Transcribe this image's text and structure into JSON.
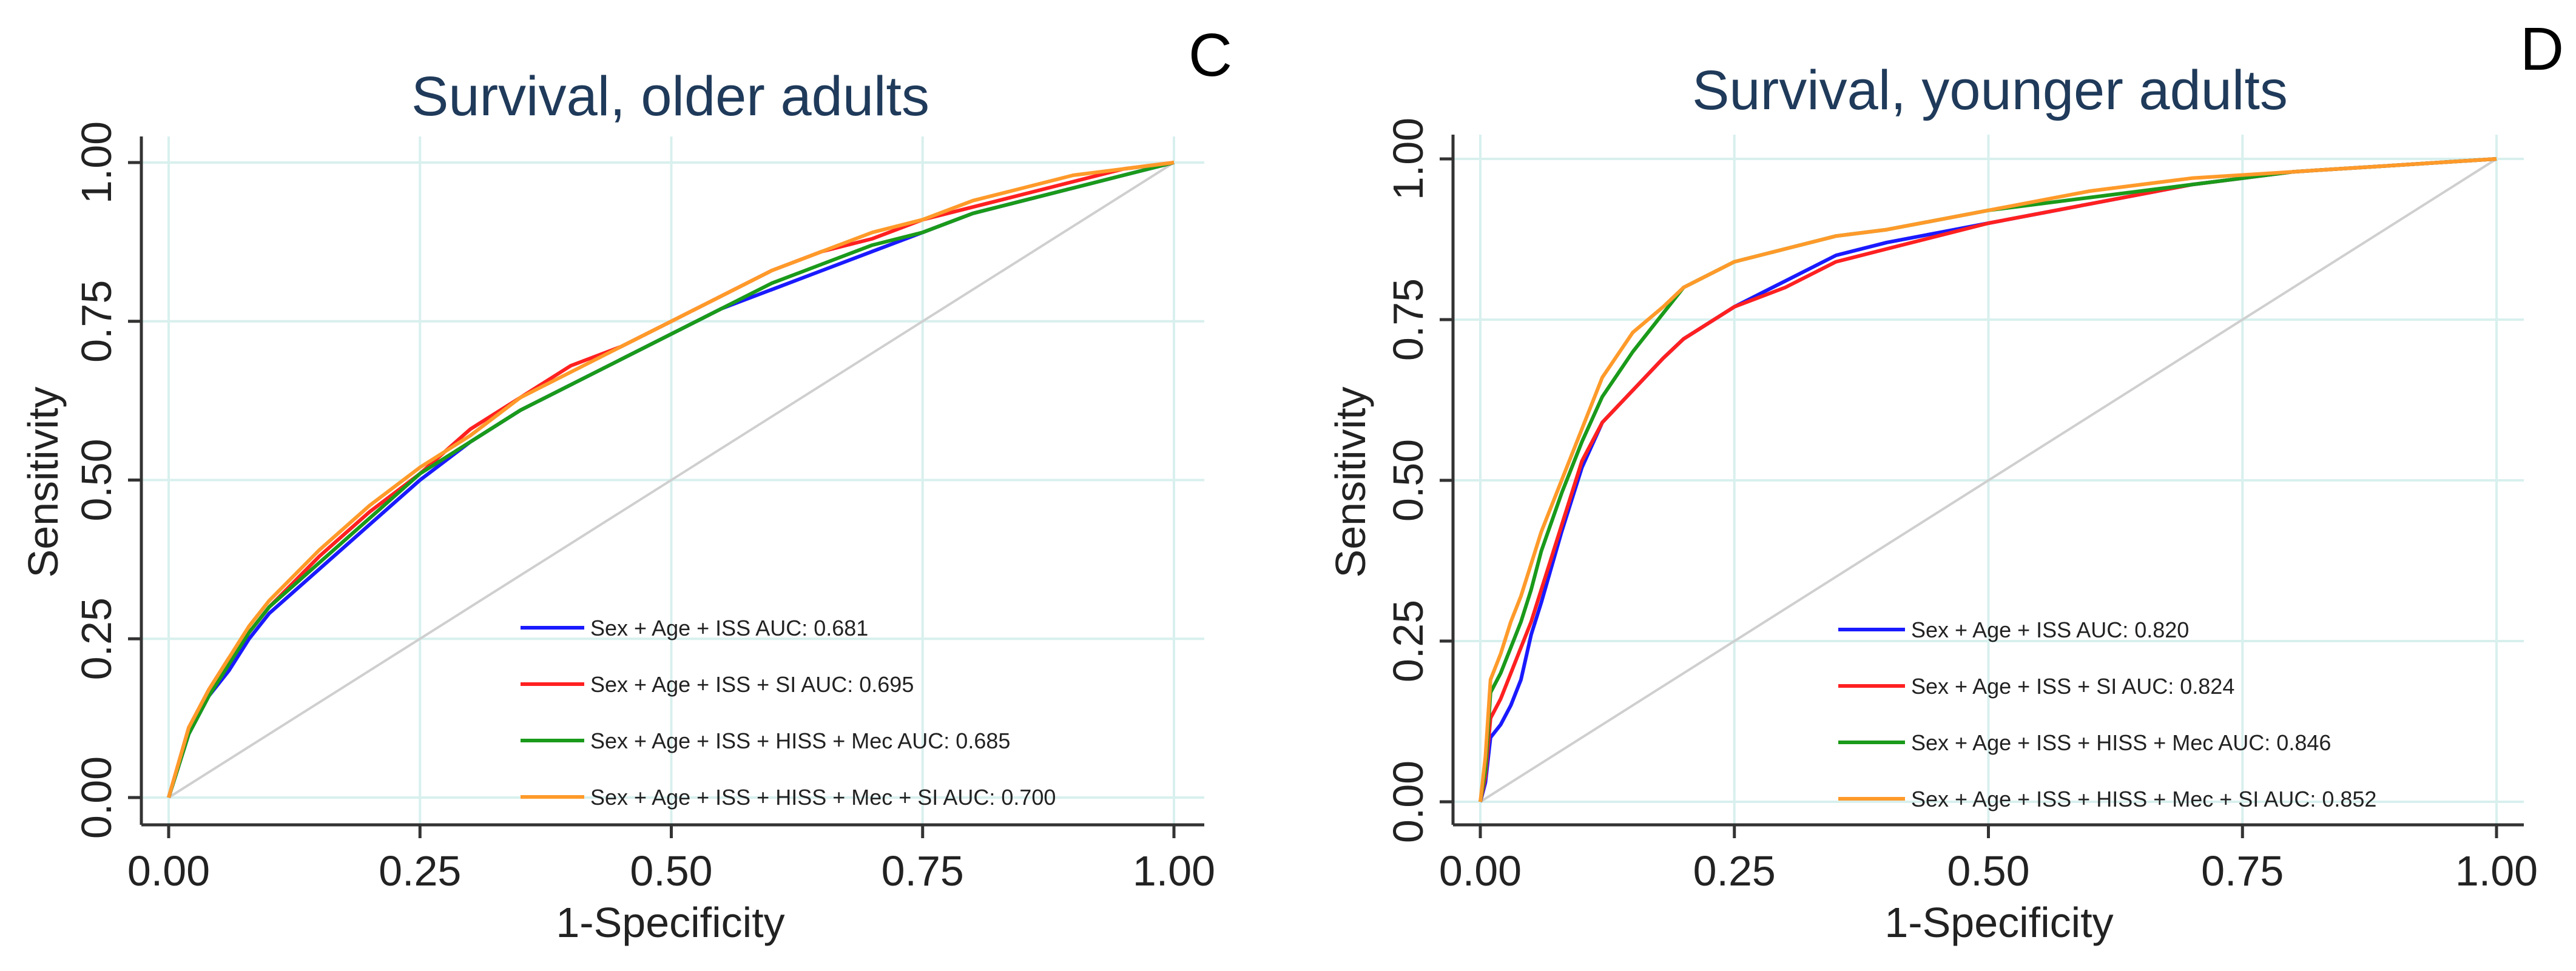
{
  "colors": {
    "blue": "#1a1aff",
    "red": "#ff2020",
    "green": "#1a9a1a",
    "orange": "#ff9a2a",
    "reference": "#cfcfcf",
    "grid": "#d8f0ee"
  },
  "chart_data": [
    {
      "type": "line",
      "panel_letter": "C",
      "title": "Survival, older adults",
      "xlabel": "1-Specificity",
      "ylabel": "Sensitivity",
      "xlim": [
        0,
        1
      ],
      "ylim": [
        0,
        1
      ],
      "xticks": [
        "0.00",
        "0.25",
        "0.50",
        "0.75",
        "1.00"
      ],
      "yticks": [
        "0.00",
        "0.25",
        "0.50",
        "0.75",
        "1.00"
      ],
      "grid": true,
      "legend_position": "bottom-right",
      "reference_line": [
        [
          0,
          0
        ],
        [
          1,
          1
        ]
      ],
      "series": [
        {
          "name": "Sex + Age + ISS AUC: 0.681",
          "color": "#1a1aff",
          "x": [
            0,
            0.02,
            0.04,
            0.06,
            0.08,
            0.1,
            0.15,
            0.2,
            0.25,
            0.3,
            0.35,
            0.4,
            0.45,
            0.5,
            0.55,
            0.6,
            0.65,
            0.7,
            0.75,
            0.8,
            0.85,
            0.9,
            0.95,
            1.0
          ],
          "y": [
            0,
            0.1,
            0.16,
            0.2,
            0.25,
            0.29,
            0.36,
            0.43,
            0.5,
            0.56,
            0.61,
            0.65,
            0.69,
            0.73,
            0.77,
            0.8,
            0.83,
            0.86,
            0.89,
            0.92,
            0.94,
            0.96,
            0.98,
            1.0
          ]
        },
        {
          "name": "Sex + Age + ISS + SI AUC: 0.695",
          "color": "#ff2020",
          "x": [
            0,
            0.02,
            0.04,
            0.06,
            0.08,
            0.1,
            0.15,
            0.2,
            0.25,
            0.3,
            0.35,
            0.4,
            0.45,
            0.5,
            0.55,
            0.6,
            0.65,
            0.7,
            0.75,
            0.8,
            0.85,
            0.9,
            0.95,
            1.0
          ],
          "y": [
            0,
            0.11,
            0.17,
            0.22,
            0.26,
            0.3,
            0.38,
            0.45,
            0.51,
            0.58,
            0.63,
            0.68,
            0.71,
            0.75,
            0.79,
            0.83,
            0.86,
            0.88,
            0.91,
            0.93,
            0.95,
            0.97,
            0.99,
            1.0
          ]
        },
        {
          "name": "Sex + Age + ISS + HISS + Mec AUC: 0.685",
          "color": "#1a9a1a",
          "x": [
            0,
            0.02,
            0.04,
            0.06,
            0.08,
            0.1,
            0.15,
            0.2,
            0.25,
            0.3,
            0.35,
            0.4,
            0.45,
            0.5,
            0.55,
            0.6,
            0.65,
            0.7,
            0.75,
            0.8,
            0.85,
            0.9,
            0.95,
            1.0
          ],
          "y": [
            0,
            0.1,
            0.16,
            0.21,
            0.26,
            0.3,
            0.37,
            0.44,
            0.51,
            0.56,
            0.61,
            0.65,
            0.69,
            0.73,
            0.77,
            0.81,
            0.84,
            0.87,
            0.89,
            0.92,
            0.94,
            0.96,
            0.98,
            1.0
          ]
        },
        {
          "name": "Sex + Age + ISS + HISS + Mec + SI AUC: 0.700",
          "color": "#ff9a2a",
          "x": [
            0,
            0.02,
            0.04,
            0.06,
            0.08,
            0.1,
            0.15,
            0.2,
            0.25,
            0.3,
            0.35,
            0.4,
            0.45,
            0.5,
            0.55,
            0.6,
            0.65,
            0.7,
            0.75,
            0.8,
            0.85,
            0.9,
            0.95,
            1.0
          ],
          "y": [
            0,
            0.11,
            0.17,
            0.22,
            0.27,
            0.31,
            0.39,
            0.46,
            0.52,
            0.57,
            0.63,
            0.67,
            0.71,
            0.75,
            0.79,
            0.83,
            0.86,
            0.89,
            0.91,
            0.94,
            0.96,
            0.98,
            0.99,
            1.0
          ]
        }
      ]
    },
    {
      "type": "line",
      "panel_letter": "D",
      "title": "Survival, younger adults",
      "xlabel": "1-Specificity",
      "ylabel": "Sensitivity",
      "xlim": [
        0,
        1
      ],
      "ylim": [
        0,
        1
      ],
      "xticks": [
        "0.00",
        "0.25",
        "0.50",
        "0.75",
        "1.00"
      ],
      "yticks": [
        "0.00",
        "0.25",
        "0.50",
        "0.75",
        "1.00"
      ],
      "grid": true,
      "legend_position": "bottom-right",
      "reference_line": [
        [
          0,
          0
        ],
        [
          1,
          1
        ]
      ],
      "series": [
        {
          "name": "Sex + Age + ISS AUC: 0.820",
          "color": "#1a1aff",
          "x": [
            0,
            0.005,
            0.01,
            0.02,
            0.03,
            0.04,
            0.05,
            0.06,
            0.08,
            0.1,
            0.12,
            0.15,
            0.18,
            0.2,
            0.25,
            0.3,
            0.35,
            0.4,
            0.5,
            0.6,
            0.7,
            0.8,
            0.9,
            1.0
          ],
          "y": [
            0,
            0.03,
            0.1,
            0.12,
            0.15,
            0.19,
            0.26,
            0.31,
            0.42,
            0.52,
            0.59,
            0.64,
            0.69,
            0.72,
            0.77,
            0.81,
            0.85,
            0.87,
            0.9,
            0.93,
            0.96,
            0.98,
            0.99,
            1.0
          ]
        },
        {
          "name": "Sex + Age + ISS + SI AUC: 0.824",
          "color": "#ff2020",
          "x": [
            0,
            0.005,
            0.01,
            0.02,
            0.03,
            0.04,
            0.05,
            0.06,
            0.08,
            0.1,
            0.12,
            0.15,
            0.18,
            0.2,
            0.25,
            0.3,
            0.35,
            0.4,
            0.5,
            0.6,
            0.7,
            0.8,
            0.9,
            1.0
          ],
          "y": [
            0,
            0.04,
            0.13,
            0.16,
            0.2,
            0.24,
            0.28,
            0.33,
            0.43,
            0.53,
            0.59,
            0.64,
            0.69,
            0.72,
            0.77,
            0.8,
            0.84,
            0.86,
            0.9,
            0.93,
            0.96,
            0.98,
            0.99,
            1.0
          ]
        },
        {
          "name": "Sex + Age + ISS + HISS + Mec AUC: 0.846",
          "color": "#1a9a1a",
          "x": [
            0,
            0.005,
            0.01,
            0.02,
            0.03,
            0.04,
            0.05,
            0.06,
            0.08,
            0.1,
            0.12,
            0.15,
            0.18,
            0.2,
            0.25,
            0.3,
            0.35,
            0.4,
            0.5,
            0.6,
            0.7,
            0.8,
            0.9,
            1.0
          ],
          "y": [
            0,
            0.05,
            0.17,
            0.2,
            0.24,
            0.28,
            0.33,
            0.39,
            0.48,
            0.56,
            0.63,
            0.7,
            0.76,
            0.8,
            0.84,
            0.86,
            0.88,
            0.89,
            0.92,
            0.94,
            0.96,
            0.98,
            0.99,
            1.0
          ]
        },
        {
          "name": "Sex + Age + ISS + HISS + Mec + SI AUC: 0.852",
          "color": "#ff9a2a",
          "x": [
            0,
            0.005,
            0.01,
            0.02,
            0.03,
            0.04,
            0.05,
            0.06,
            0.08,
            0.1,
            0.12,
            0.15,
            0.18,
            0.2,
            0.25,
            0.3,
            0.35,
            0.4,
            0.5,
            0.6,
            0.7,
            0.8,
            0.9,
            1.0
          ],
          "y": [
            0,
            0.07,
            0.19,
            0.23,
            0.28,
            0.32,
            0.37,
            0.42,
            0.5,
            0.58,
            0.66,
            0.73,
            0.77,
            0.8,
            0.84,
            0.86,
            0.88,
            0.89,
            0.92,
            0.95,
            0.97,
            0.98,
            0.99,
            1.0
          ]
        }
      ]
    }
  ]
}
